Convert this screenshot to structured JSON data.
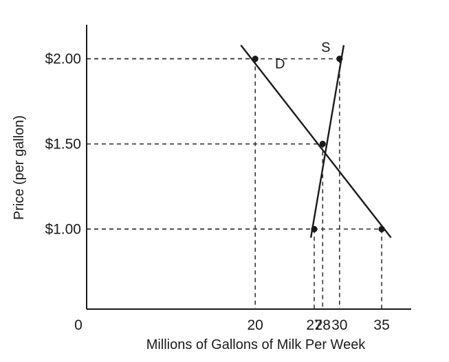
{
  "chart_data": {
    "type": "line",
    "title": "",
    "xlabel": "Millions of Gallons of Milk Per Week",
    "ylabel": "Price (per gallon)",
    "origin_label": "0",
    "xlim": [
      0,
      38.5
    ],
    "ylim": [
      0.53,
      2.2
    ],
    "x_ticks": [
      {
        "value": 20,
        "label": "20"
      },
      {
        "value": 27,
        "label": "27"
      },
      {
        "value": 28,
        "label": "28"
      },
      {
        "value": 30,
        "label": "30"
      },
      {
        "value": 35,
        "label": "35"
      }
    ],
    "y_ticks": [
      {
        "value": 2.0,
        "label": "$2.00"
      },
      {
        "value": 1.5,
        "label": "$1.50"
      },
      {
        "value": 1.0,
        "label": "$1.00"
      }
    ],
    "series": [
      {
        "name": "D",
        "line": [
          [
            18.3,
            2.08
          ],
          [
            36.1,
            0.95
          ]
        ],
        "points": [
          [
            20,
            2.0
          ],
          [
            28,
            1.5
          ],
          [
            35,
            1.0
          ]
        ]
      },
      {
        "name": "S",
        "line": [
          [
            26.6,
            0.95
          ],
          [
            30.5,
            2.08
          ]
        ],
        "points": [
          [
            27,
            1.0
          ],
          [
            28,
            1.5
          ],
          [
            30,
            2.0
          ]
        ]
      }
    ],
    "guides": [
      [
        20,
        2.0
      ],
      [
        30,
        2.0
      ],
      [
        28,
        1.5
      ],
      [
        27,
        1.0
      ],
      [
        35,
        1.0
      ]
    ],
    "grid": false,
    "legend": "none",
    "colors": {
      "line": "#1a1a1a",
      "guide": "#333333"
    }
  }
}
